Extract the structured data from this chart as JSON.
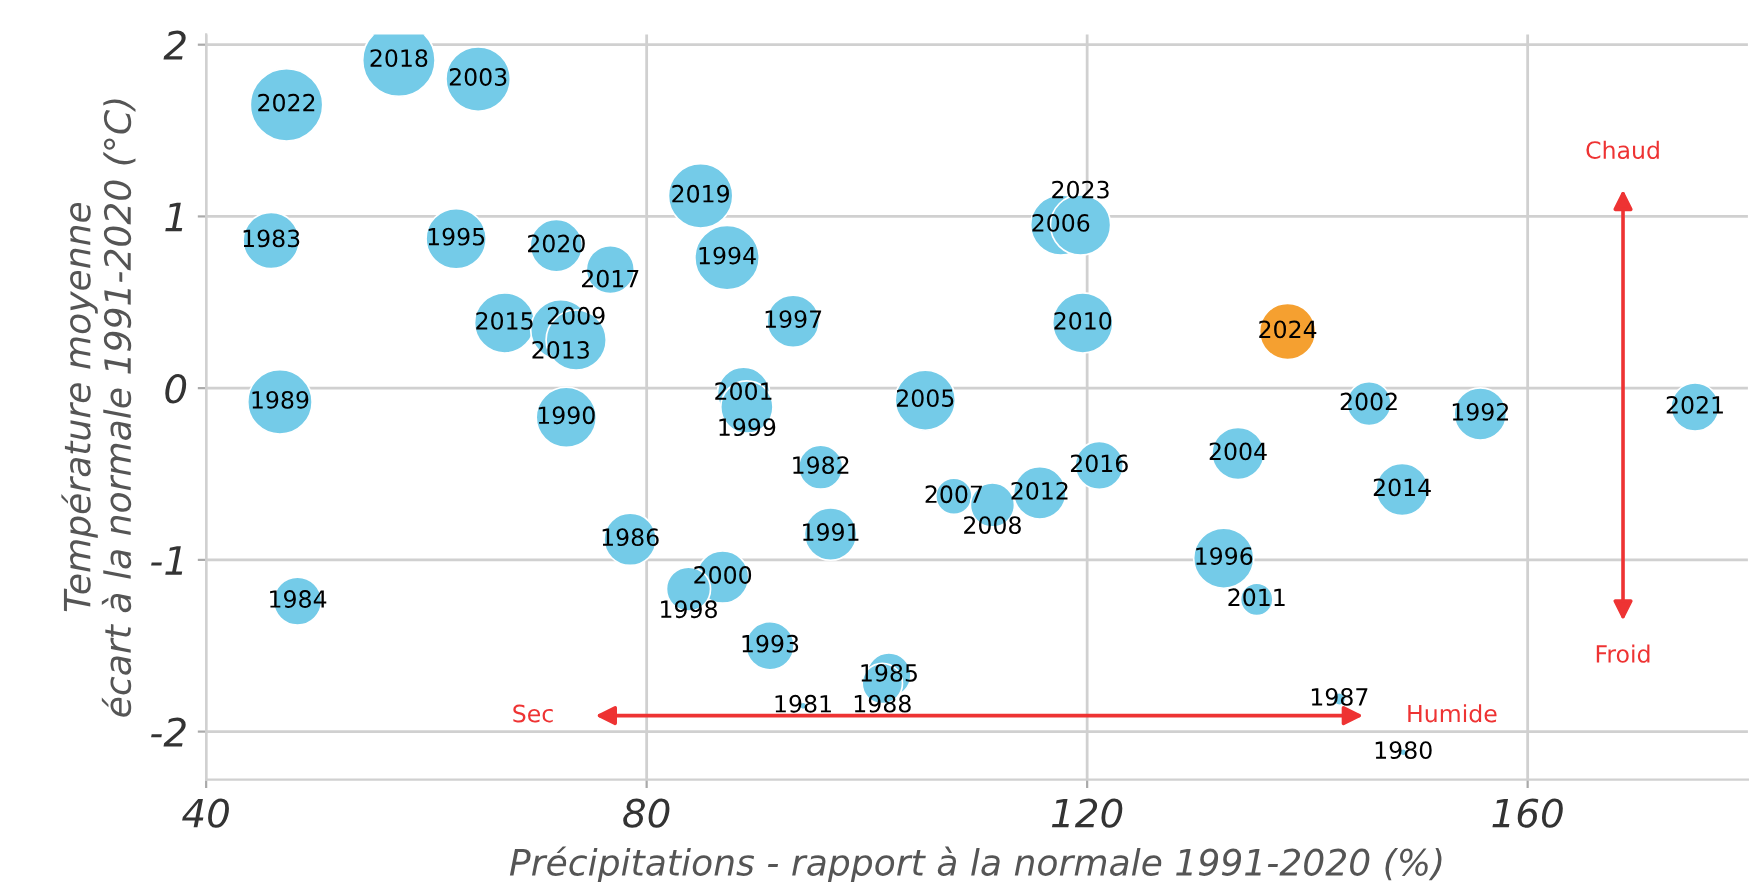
{
  "chart_data": {
    "type": "bubble",
    "xlabel": "Précipitations - rapport à la normale 1991-2020 (%)",
    "ylabel": "Température moyenne\nécart à la normale 1991-2020 (°C)",
    "x": [
      47.3,
      57.5,
      64.7,
      45.9,
      62.7,
      71.8,
      76.7,
      84.9,
      87.3,
      93.3,
      67.1,
      72.2,
      73.6,
      46.7,
      72.7,
      88.8,
      89.1,
      105.3,
      117.6,
      119.4,
      119.6,
      138.2,
      145.6,
      155.7,
      175.2,
      95.8,
      78.5,
      96.7,
      86.9,
      83.8,
      48.3,
      91.2,
      102.0,
      101.4,
      94.2,
      121.1,
      107.9,
      111.4,
      115.7,
      133.7,
      148.6,
      132.4,
      135.4,
      142.9,
      148.7
    ],
    "values": [
      1.65,
      1.91,
      1.8,
      0.86,
      0.87,
      0.83,
      0.69,
      1.12,
      0.76,
      0.39,
      0.38,
      0.34,
      0.28,
      -0.08,
      -0.17,
      -0.03,
      -0.11,
      -0.07,
      0.95,
      0.95,
      0.38,
      0.33,
      -0.09,
      -0.15,
      -0.11,
      -0.46,
      -0.88,
      -0.85,
      -1.1,
      -1.17,
      -1.24,
      -1.5,
      -1.67,
      -1.72,
      -1.85,
      -0.45,
      -0.63,
      -0.68,
      -0.61,
      -0.38,
      -0.59,
      -0.99,
      -1.23,
      -1.81,
      -2.12
    ],
    "sizes": [
      1,
      1,
      0.79,
      0.6,
      0.69,
      0.52,
      0.44,
      0.79,
      0.79,
      0.52,
      0.69,
      0.69,
      0.69,
      0.79,
      0.69,
      0.52,
      0.52,
      0.69,
      0.69,
      0.69,
      0.69,
      0.6,
      0.37,
      0.52,
      0.44,
      0.37,
      0.52,
      0.52,
      0.52,
      0.37,
      0.44,
      0.44,
      0.37,
      0.31,
      0.01,
      0.44,
      0.25,
      0.37,
      0.52,
      0.52,
      0.52,
      0.69,
      0.2,
      0.03,
      0.01
    ],
    "colors": [
      "#74cbe8",
      "#74cbe8",
      "#74cbe8",
      "#74cbe8",
      "#74cbe8",
      "#74cbe8",
      "#74cbe8",
      "#74cbe8",
      "#74cbe8",
      "#74cbe8",
      "#74cbe8",
      "#74cbe8",
      "#74cbe8",
      "#74cbe8",
      "#74cbe8",
      "#74cbe8",
      "#74cbe8",
      "#74cbe8",
      "#74cbe8",
      "#74cbe8",
      "#74cbe8",
      "#f5a030",
      "#74cbe8",
      "#74cbe8",
      "#74cbe8",
      "#74cbe8",
      "#74cbe8",
      "#74cbe8",
      "#74cbe8",
      "#74cbe8",
      "#74cbe8",
      "#74cbe8",
      "#74cbe8",
      "#74cbe8",
      "#74cbe8",
      "#74cbe8",
      "#74cbe8",
      "#74cbe8",
      "#74cbe8",
      "#74cbe8",
      "#74cbe8",
      "#74cbe8",
      "#74cbe8",
      "#74cbe8",
      "#74cbe8"
    ],
    "xlim": [
      40,
      180
    ],
    "ylim": [
      -2.28,
      2.06
    ],
    "xticks": [
      40,
      80,
      120,
      160
    ],
    "yticks": [
      -2,
      -1,
      0,
      1,
      2
    ],
    "grid": true,
    "legend": false,
    "annotations": [
      {
        "text": "2022",
        "x": 47.3,
        "y": 1.65
      },
      {
        "text": "2018",
        "x": 57.5,
        "y": 1.91
      },
      {
        "text": "2003",
        "x": 64.7,
        "y": 1.8
      },
      {
        "text": "1983",
        "x": 45.9,
        "y": 0.86
      },
      {
        "text": "1995",
        "x": 62.7,
        "y": 0.87
      },
      {
        "text": "2020",
        "x": 71.8,
        "y": 0.83
      },
      {
        "text": "2017",
        "x": 76.7,
        "y": 0.69
      },
      {
        "text": "2019",
        "x": 84.9,
        "y": 1.12
      },
      {
        "text": "1994",
        "x": 87.3,
        "y": 0.76
      },
      {
        "text": "1997",
        "x": 93.3,
        "y": 0.39
      },
      {
        "text": "2015",
        "x": 67.1,
        "y": 0.38
      },
      {
        "text": "2013",
        "x": 72.2,
        "y": 0.34
      },
      {
        "text": "2009",
        "x": 73.6,
        "y": 0.28
      },
      {
        "text": "1989",
        "x": 46.7,
        "y": -0.08
      },
      {
        "text": "1990",
        "x": 72.7,
        "y": -0.17
      },
      {
        "text": "2001",
        "x": 88.8,
        "y": -0.03
      },
      {
        "text": "1999",
        "x": 89.1,
        "y": -0.11
      },
      {
        "text": "2005",
        "x": 105.3,
        "y": -0.07
      },
      {
        "text": "2006",
        "x": 117.6,
        "y": 0.95
      },
      {
        "text": "2023",
        "x": 119.4,
        "y": 0.95
      },
      {
        "text": "2010",
        "x": 119.6,
        "y": 0.38
      },
      {
        "text": "2024",
        "x": 138.2,
        "y": 0.33
      },
      {
        "text": "2002",
        "x": 145.6,
        "y": -0.09
      },
      {
        "text": "1992",
        "x": 155.7,
        "y": -0.15
      },
      {
        "text": "2021",
        "x": 175.2,
        "y": -0.11
      },
      {
        "text": "1982",
        "x": 95.8,
        "y": -0.46
      },
      {
        "text": "1986",
        "x": 78.5,
        "y": -0.88
      },
      {
        "text": "1991",
        "x": 96.7,
        "y": -0.85
      },
      {
        "text": "2000",
        "x": 86.9,
        "y": -1.1
      },
      {
        "text": "1998",
        "x": 83.8,
        "y": -1.17
      },
      {
        "text": "1984",
        "x": 48.3,
        "y": -1.24
      },
      {
        "text": "1993",
        "x": 91.2,
        "y": -1.5
      },
      {
        "text": "1985",
        "x": 102.0,
        "y": -1.67
      },
      {
        "text": "1988",
        "x": 101.4,
        "y": -1.72
      },
      {
        "text": "1981",
        "x": 94.2,
        "y": -1.85
      },
      {
        "text": "2016",
        "x": 121.1,
        "y": -0.45
      },
      {
        "text": "2007",
        "x": 107.9,
        "y": -0.63
      },
      {
        "text": "2008",
        "x": 111.4,
        "y": -0.68
      },
      {
        "text": "2012",
        "x": 115.7,
        "y": -0.61
      },
      {
        "text": "2004",
        "x": 133.7,
        "y": -0.38
      },
      {
        "text": "2014",
        "x": 148.6,
        "y": -0.59
      },
      {
        "text": "1996",
        "x": 132.4,
        "y": -0.99
      },
      {
        "text": "2011",
        "x": 135.4,
        "y": -1.23
      },
      {
        "text": "1987",
        "x": 142.9,
        "y": -1.81
      },
      {
        "text": "1980",
        "x": 148.7,
        "y": -2.12
      },
      "Sec",
      "Humide",
      "Chaud",
      "Froid"
    ]
  }
}
